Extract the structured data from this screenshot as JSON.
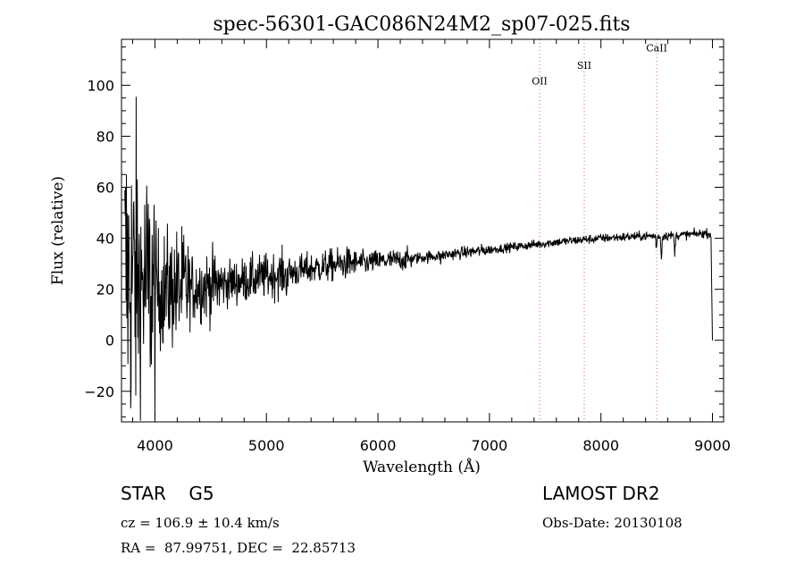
{
  "chart_data": {
    "type": "line",
    "title": "spec-56301-GAC086N24M2_sp07-025.fits",
    "xlabel": "Wavelength (Å)",
    "ylabel": "Flux (relative)",
    "xlim": [
      3700,
      9100
    ],
    "ylim": [
      -32,
      118
    ],
    "xticks": [
      4000,
      5000,
      6000,
      7000,
      8000,
      9000
    ],
    "yticks": [
      -20,
      0,
      20,
      40,
      60,
      80,
      100
    ],
    "x_minor_step": 200,
    "y_minor_step": 5,
    "series": [
      {
        "name": "flux",
        "note": "approximate continuum trend read from the plot; noise added procedurally",
        "x": [
          3700,
          3800,
          3900,
          4000,
          4200,
          4400,
          4600,
          4800,
          5000,
          5200,
          5400,
          5600,
          5800,
          6000,
          6200,
          6400,
          6600,
          6800,
          7000,
          7200,
          7400,
          7600,
          7800,
          8000,
          8200,
          8400,
          8600,
          8800,
          8950,
          9000
        ],
        "y": [
          28,
          24,
          22,
          20,
          20,
          21,
          22,
          23.5,
          25,
          26.5,
          28,
          29.5,
          30.5,
          31,
          31.5,
          32.5,
          33.5,
          34.5,
          35.5,
          36.5,
          37.5,
          38.5,
          39.3,
          40,
          40.5,
          40.8,
          41,
          41.5,
          42,
          41.5
        ]
      }
    ],
    "line_markers": [
      {
        "label": "OII",
        "x": 7450,
        "y_label": 100
      },
      {
        "label": "SII",
        "x": 7850,
        "y_label": 106
      },
      {
        "label": "CaII",
        "x": 8500,
        "y_label": 113
      }
    ]
  },
  "info": {
    "object_class": "STAR    G5",
    "cz": "cz = 106.9 ± 10.4 km/s",
    "radec": "RA =  87.99751, DEC =  22.85713",
    "survey": "LAMOST DR2",
    "obs_date": "Obs-Date: 20130108"
  },
  "colors": {
    "spectrum": "#000000",
    "marker": "#e06060",
    "axis": "#000000"
  }
}
